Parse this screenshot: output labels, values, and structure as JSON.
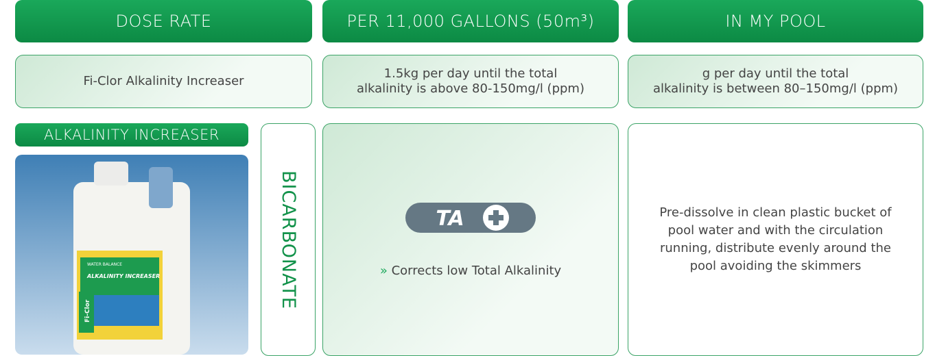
{
  "headers": [
    "DOSE RATE",
    "PER 11,000 GALLONS (50m³)",
    "IN MY POOL"
  ],
  "dose_row": {
    "product": "Fi-Clor Alkalinity Increaser",
    "per_11000_gallons": [
      "1.5kg  per day until the total",
      "alkalinity is above 80-150mg/l (ppm)"
    ],
    "in_my_pool": [
      "g  per day until the total",
      "alkalinity is between 80–150mg/l (ppm)"
    ]
  },
  "product": {
    "title": "ALKALINITY INCREASER",
    "type": "BICARBONATE",
    "pack_labels": [
      "WATER BALANCE",
      "ALKALINITY INCREASER",
      "Fi-Clor"
    ]
  },
  "effect": {
    "badge": "TA",
    "bullet": "»",
    "text": "Corrects low Total Alkalinity"
  },
  "instructions": [
    "Pre-dissolve in clean plastic bucket of",
    "pool water and with the circulation",
    "running, distribute evenly around the",
    "pool avoiding the skimmers"
  ]
}
